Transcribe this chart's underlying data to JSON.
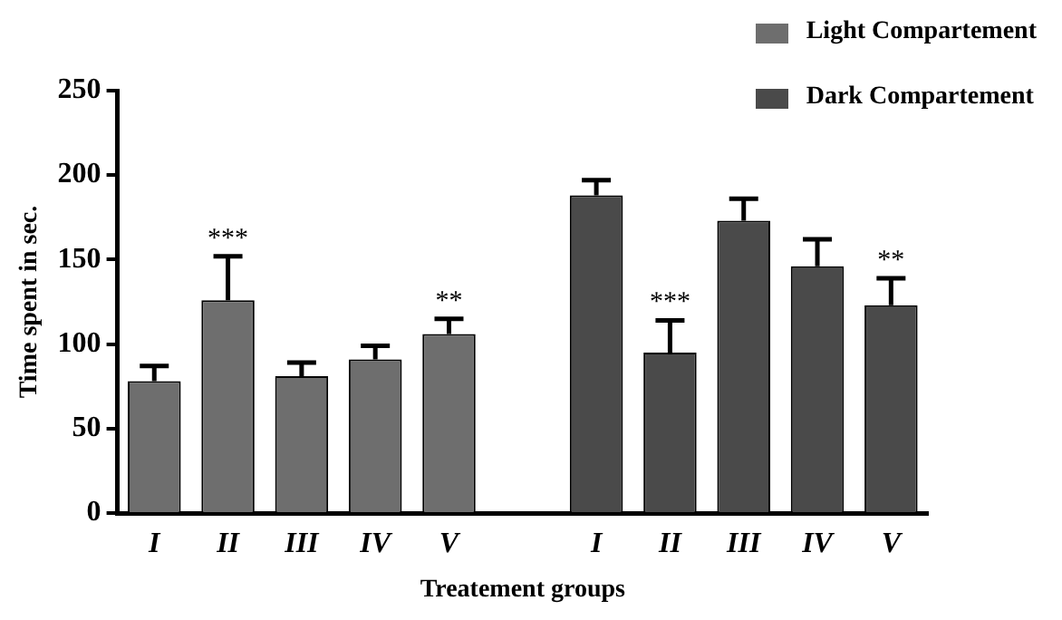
{
  "chart_data": {
    "type": "bar",
    "xlabel": "Treatement groups",
    "ylabel": "Time spent in sec.",
    "categories": [
      "I",
      "II",
      "III",
      "IV",
      "V",
      null,
      "I",
      "II",
      "III",
      "IV",
      "V"
    ],
    "series": [
      {
        "name": "Light Compartement",
        "color": "#6e6e6e",
        "values": [
          78,
          126,
          81,
          91,
          106,
          null,
          null,
          null,
          null,
          null,
          null
        ],
        "errors": [
          9,
          26,
          8,
          8,
          9,
          null,
          null,
          null,
          null,
          null,
          null
        ],
        "value_labels": [
          null,
          "***",
          null,
          null,
          "**",
          null,
          null,
          null,
          null,
          null,
          null
        ]
      },
      {
        "name": "Dark Compartement",
        "color": "#4a4a4a",
        "values": [
          null,
          null,
          null,
          null,
          null,
          null,
          188,
          95,
          173,
          146,
          123
        ],
        "errors": [
          null,
          null,
          null,
          null,
          null,
          null,
          9,
          19,
          13,
          16,
          16
        ],
        "value_labels": [
          null,
          null,
          null,
          null,
          null,
          null,
          null,
          "***",
          null,
          null,
          "**"
        ]
      }
    ],
    "ylim": [
      0,
      250
    ],
    "yticks": [
      0,
      50,
      100,
      150,
      200,
      250
    ],
    "legend": "top right"
  }
}
